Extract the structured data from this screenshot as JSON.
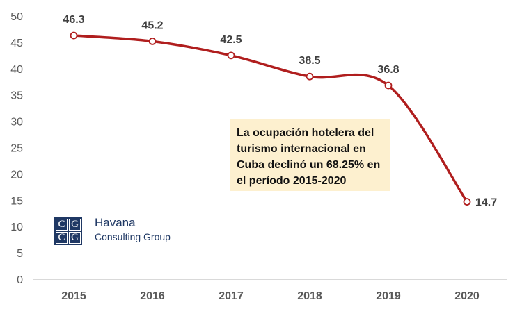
{
  "chart_data": {
    "type": "line",
    "categories": [
      "2015",
      "2016",
      "2017",
      "2018",
      "2019",
      "2020"
    ],
    "values": [
      46.3,
      45.2,
      42.5,
      38.5,
      36.8,
      14.7
    ],
    "data_labels": [
      "46.3",
      "45.2",
      "42.5",
      "38.5",
      "36.8",
      "14.7"
    ],
    "ylim": [
      0,
      50
    ],
    "yticks": [
      "0",
      "5",
      "10",
      "15",
      "20",
      "25",
      "30",
      "35",
      "40",
      "45",
      "50"
    ],
    "grid": false,
    "series_color": "#b01e1e",
    "annotation": "La ocupación hotelera del turismo internacional en Cuba declinó un 68.25% en el período 2015-2020"
  },
  "logo": {
    "letters": [
      "C",
      "G",
      "C",
      "G"
    ],
    "name": "Havana",
    "subtitle": "Consulting Group",
    "color": "#1f3864"
  }
}
